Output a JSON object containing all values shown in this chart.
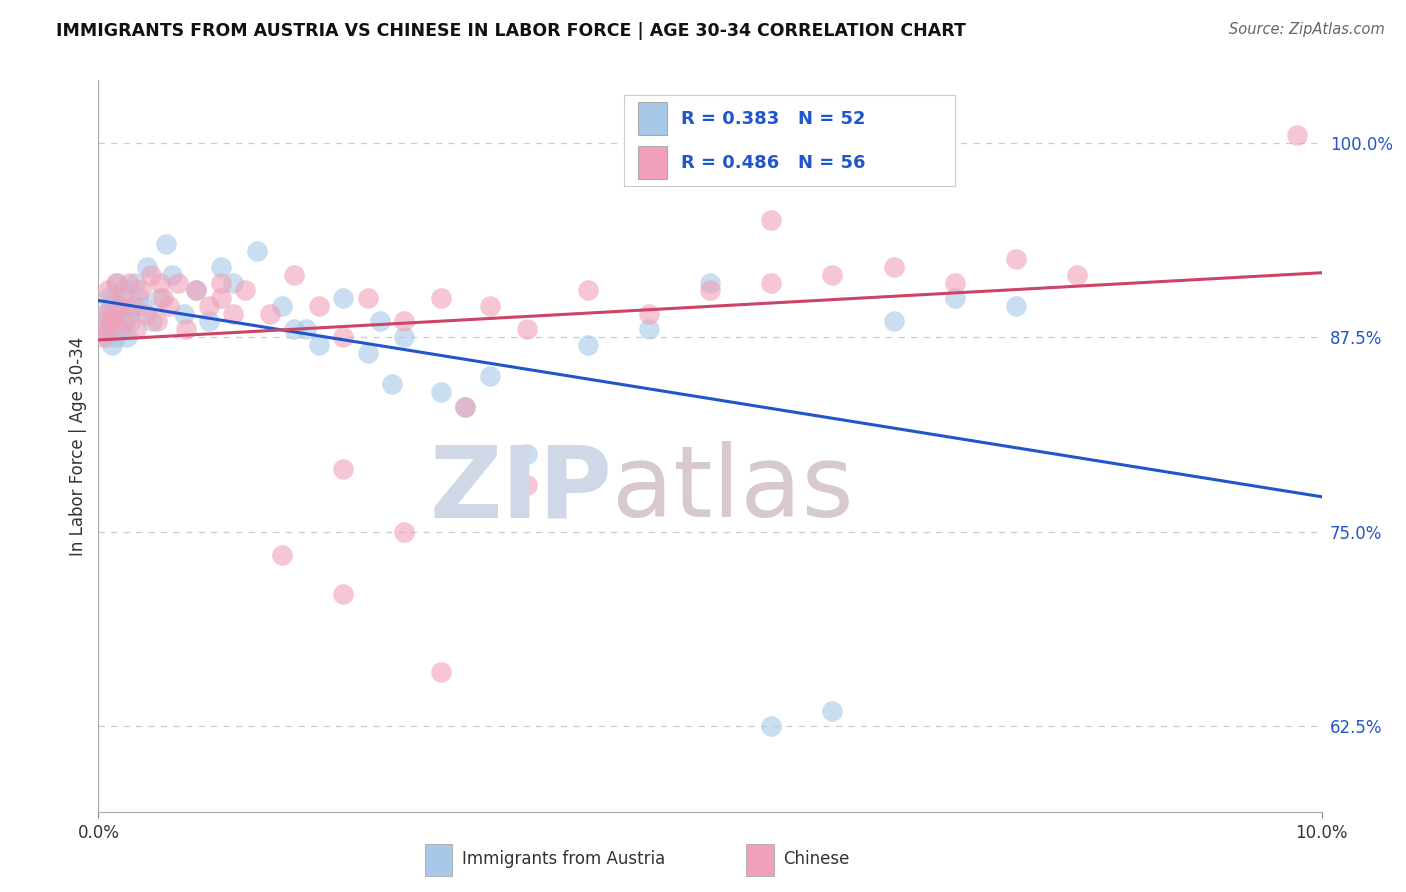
{
  "title": "IMMIGRANTS FROM AUSTRIA VS CHINESE IN LABOR FORCE | AGE 30-34 CORRELATION CHART",
  "source": "Source: ZipAtlas.com",
  "ylabel": "In Labor Force | Age 30-34",
  "legend_label1": "Immigrants from Austria",
  "legend_label2": "Chinese",
  "austria_R": 0.383,
  "austria_N": 52,
  "chinese_R": 0.486,
  "chinese_N": 56,
  "austria_color": "#a8c8e8",
  "chinese_color": "#f0a0b8",
  "austria_line_color": "#2255cc",
  "chinese_line_color": "#cc4466",
  "xlim": [
    0.0,
    10.0
  ],
  "ylim": [
    57.0,
    104.0
  ],
  "yticks": [
    62.5,
    75.0,
    87.5,
    100.0
  ],
  "ytick_labels": [
    "62.5%",
    "75.0%",
    "87.5%",
    "100.0%"
  ],
  "xtick_labels": [
    "0.0%",
    "10.0%"
  ],
  "austria_x": [
    0.05,
    0.06,
    0.07,
    0.08,
    0.09,
    0.1,
    0.11,
    0.12,
    0.13,
    0.14,
    0.15,
    0.17,
    0.19,
    0.21,
    0.23,
    0.25,
    0.27,
    0.3,
    0.33,
    0.36,
    0.4,
    0.44,
    0.5,
    0.55,
    0.6,
    0.7,
    0.8,
    0.9,
    1.0,
    1.1,
    1.3,
    1.5,
    1.7,
    2.0,
    2.3,
    2.5,
    2.8,
    3.0,
    3.5,
    4.0,
    4.5,
    5.0,
    5.5,
    6.0,
    6.5,
    7.0,
    7.5,
    2.2,
    2.4,
    1.8,
    3.2,
    1.6
  ],
  "austria_y": [
    88.5,
    89.0,
    87.5,
    90.0,
    88.0,
    89.5,
    87.0,
    88.5,
    90.0,
    87.5,
    91.0,
    89.5,
    88.0,
    90.5,
    87.5,
    89.0,
    88.5,
    91.0,
    90.0,
    89.5,
    92.0,
    88.5,
    90.0,
    93.5,
    91.5,
    89.0,
    90.5,
    88.5,
    92.0,
    91.0,
    93.0,
    89.5,
    88.0,
    90.0,
    88.5,
    87.5,
    84.0,
    83.0,
    80.0,
    87.0,
    88.0,
    91.0,
    62.5,
    63.5,
    88.5,
    90.0,
    89.5,
    86.5,
    84.5,
    87.0,
    85.0,
    88.0
  ],
  "chinese_x": [
    0.04,
    0.05,
    0.06,
    0.08,
    0.1,
    0.12,
    0.14,
    0.16,
    0.18,
    0.2,
    0.22,
    0.25,
    0.28,
    0.31,
    0.35,
    0.39,
    0.43,
    0.48,
    0.53,
    0.58,
    0.65,
    0.72,
    0.8,
    0.9,
    1.0,
    1.1,
    1.2,
    1.4,
    1.6,
    1.8,
    2.0,
    2.2,
    2.5,
    2.8,
    3.2,
    3.5,
    4.0,
    4.5,
    5.0,
    5.5,
    6.0,
    6.5,
    7.0,
    7.5,
    8.0,
    9.8,
    5.5,
    2.5,
    2.0,
    2.0,
    1.5,
    3.0,
    2.8,
    3.5,
    0.5,
    1.0
  ],
  "chinese_y": [
    87.5,
    89.0,
    88.0,
    90.5,
    88.5,
    89.0,
    91.0,
    88.0,
    89.5,
    90.0,
    88.5,
    91.0,
    89.5,
    88.0,
    90.5,
    89.0,
    91.5,
    88.5,
    90.0,
    89.5,
    91.0,
    88.0,
    90.5,
    89.5,
    91.0,
    89.0,
    90.5,
    89.0,
    91.5,
    89.5,
    87.5,
    90.0,
    88.5,
    90.0,
    89.5,
    88.0,
    90.5,
    89.0,
    90.5,
    91.0,
    91.5,
    92.0,
    91.0,
    92.5,
    91.5,
    100.5,
    95.0,
    75.0,
    79.0,
    71.0,
    73.5,
    83.0,
    66.0,
    78.0,
    91.0,
    90.0
  ],
  "watermark_zip_color": "#d0d8e8",
  "watermark_atlas_color": "#d8c8d0"
}
